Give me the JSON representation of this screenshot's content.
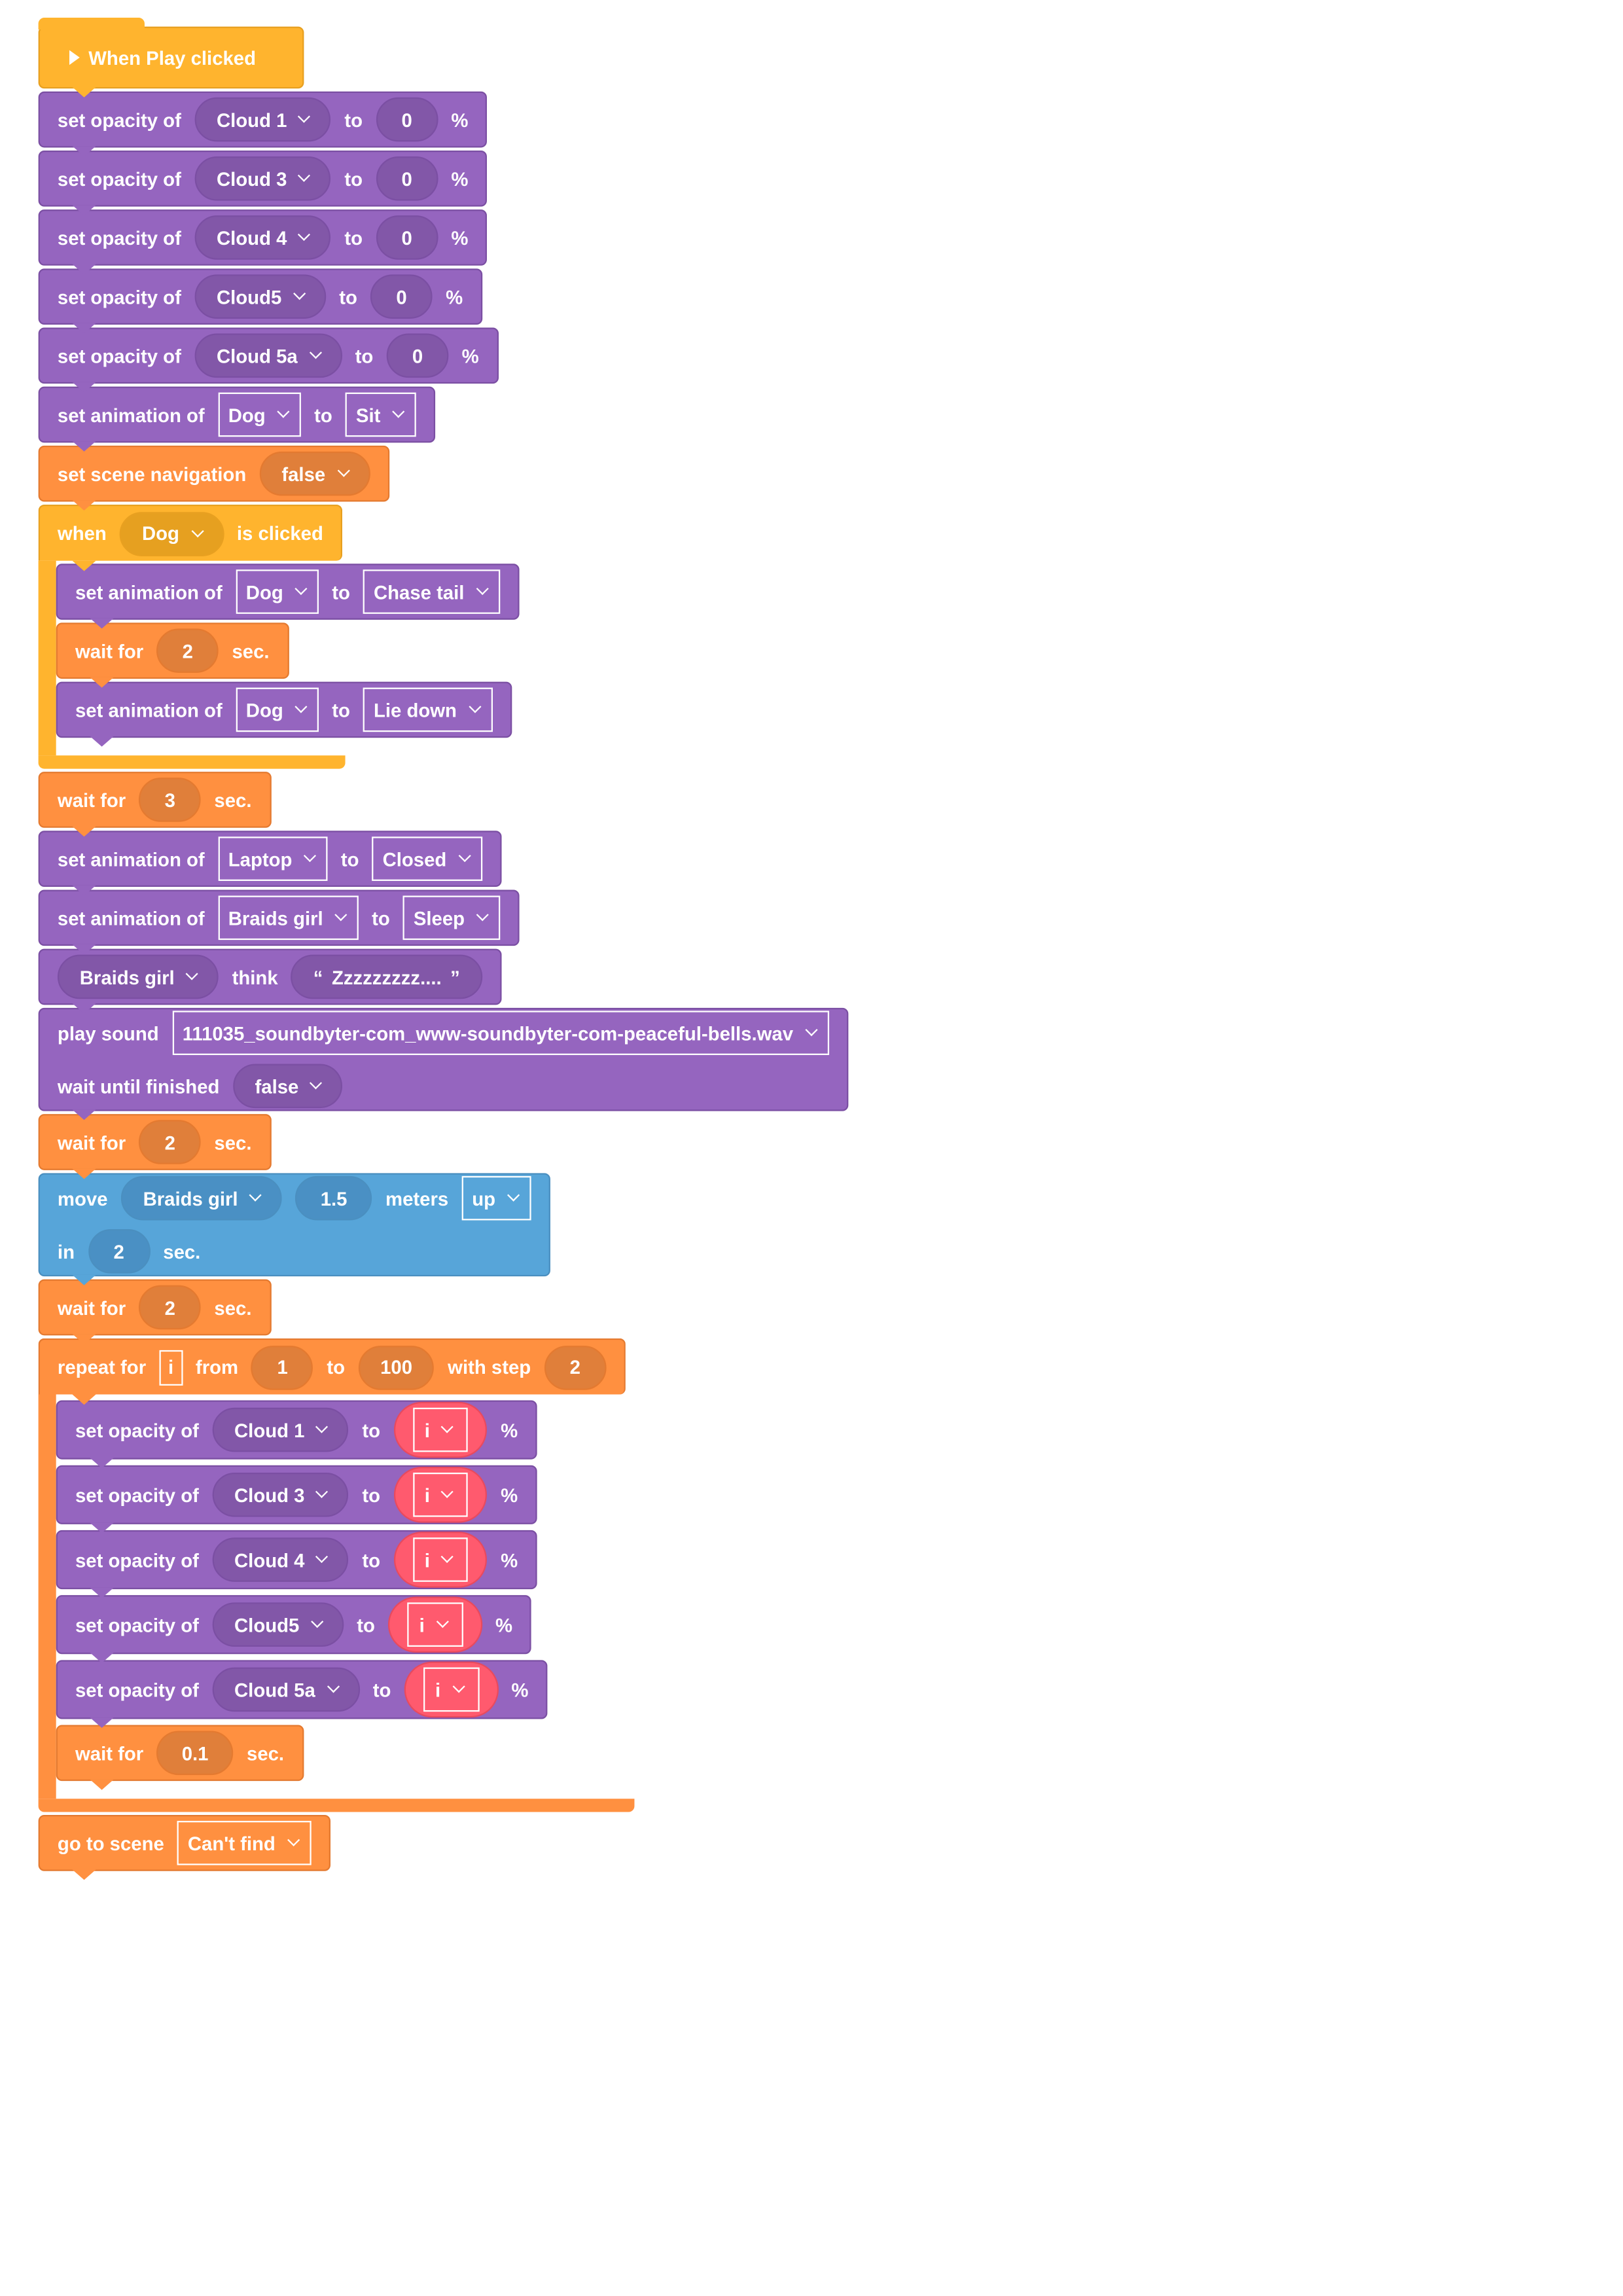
{
  "hat": {
    "label": "When Play clicked"
  },
  "opacity_init": [
    {
      "label": "set opacity of",
      "target": "Cloud 1",
      "to": "to",
      "value": "0",
      "unit": "%"
    },
    {
      "label": "set opacity of",
      "target": "Cloud 3",
      "to": "to",
      "value": "0",
      "unit": "%"
    },
    {
      "label": "set opacity of",
      "target": "Cloud 4",
      "to": "to",
      "value": "0",
      "unit": "%"
    },
    {
      "label": "set opacity of",
      "target": "Cloud5",
      "to": "to",
      "value": "0",
      "unit": "%"
    },
    {
      "label": "set opacity of",
      "target": "Cloud 5a",
      "to": "to",
      "value": "0",
      "unit": "%"
    }
  ],
  "anim_dog_sit": {
    "label": "set animation of",
    "target": "Dog",
    "to": "to",
    "value": "Sit"
  },
  "scene_nav": {
    "label": "set scene navigation",
    "value": "false"
  },
  "when_clicked": {
    "when": "when",
    "target": "Dog",
    "suffix": "is clicked",
    "anim1": {
      "label": "set animation of",
      "target": "Dog",
      "to": "to",
      "value": "Chase tail"
    },
    "wait": {
      "label": "wait for",
      "value": "2",
      "unit": "sec."
    },
    "anim2": {
      "label": "set animation of",
      "target": "Dog",
      "to": "to",
      "value": "Lie down"
    }
  },
  "wait_3": {
    "label": "wait for",
    "value": "3",
    "unit": "sec."
  },
  "anim_laptop": {
    "label": "set animation of",
    "target": "Laptop",
    "to": "to",
    "value": "Closed"
  },
  "anim_braids": {
    "label": "set animation of",
    "target": "Braids girl",
    "to": "to",
    "value": "Sleep"
  },
  "think": {
    "target": "Braids girl",
    "label": "think",
    "open_quote": "“",
    "text": "Zzzzzzzzz....",
    "close_quote": "”"
  },
  "play_sound": {
    "label": "play sound",
    "file": "111035_soundbyter-com_www-soundbyter-com-peaceful-bells.wav",
    "wait_label": "wait until finished",
    "wait_value": "false"
  },
  "wait_2a": {
    "label": "wait for",
    "value": "2",
    "unit": "sec."
  },
  "move": {
    "label": "move",
    "target": "Braids girl",
    "distance": "1.5",
    "unit": "meters",
    "direction": "up",
    "in_label": "in",
    "duration": "2",
    "sec": "sec."
  },
  "wait_2b": {
    "label": "wait for",
    "value": "2",
    "unit": "sec."
  },
  "repeat": {
    "label": "repeat for",
    "var": "i",
    "from": "from",
    "start": "1",
    "to": "to",
    "end": "100",
    "step_label": "with step",
    "step": "2",
    "body": [
      {
        "label": "set opacity of",
        "target": "Cloud 1",
        "to": "to",
        "value": "i",
        "unit": "%"
      },
      {
        "label": "set opacity of",
        "target": "Cloud 3",
        "to": "to",
        "value": "i",
        "unit": "%"
      },
      {
        "label": "set opacity of",
        "target": "Cloud 4",
        "to": "to",
        "value": "i",
        "unit": "%"
      },
      {
        "label": "set opacity of",
        "target": "Cloud5",
        "to": "to",
        "value": "i",
        "unit": "%"
      },
      {
        "label": "set opacity of",
        "target": "Cloud 5a",
        "to": "to",
        "value": "i",
        "unit": "%"
      }
    ],
    "wait": {
      "label": "wait for",
      "value": "0.1",
      "unit": "sec."
    }
  },
  "go_to_scene": {
    "label": "go to scene",
    "value": "Can't find"
  },
  "colors": {
    "looks": "#9565BF",
    "control": "#FF9040",
    "events": "#FFB42E",
    "motion": "#57A5D9",
    "variable": "#FF5A6E"
  }
}
